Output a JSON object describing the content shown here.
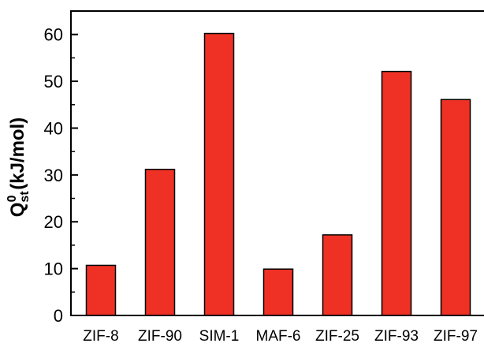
{
  "chart_data": {
    "type": "bar",
    "categories": [
      "ZIF-8",
      "ZIF-90",
      "SIM-1",
      "MAF-6",
      "ZIF-25",
      "ZIF-93",
      "ZIF-97"
    ],
    "values": [
      10.7,
      31.2,
      60.2,
      9.9,
      17.2,
      52.1,
      46.1
    ],
    "title": "",
    "xlabel": "",
    "ylabel": {
      "q": "Q",
      "sup": "0",
      "sub": "st",
      "rest": " (kJ/mol)"
    },
    "ylim": [
      0,
      65
    ],
    "yticks": [
      0,
      10,
      20,
      30,
      40,
      50,
      60
    ],
    "bar_color": "#ee3124",
    "bar_edge_color": "#000000",
    "grid": false
  }
}
